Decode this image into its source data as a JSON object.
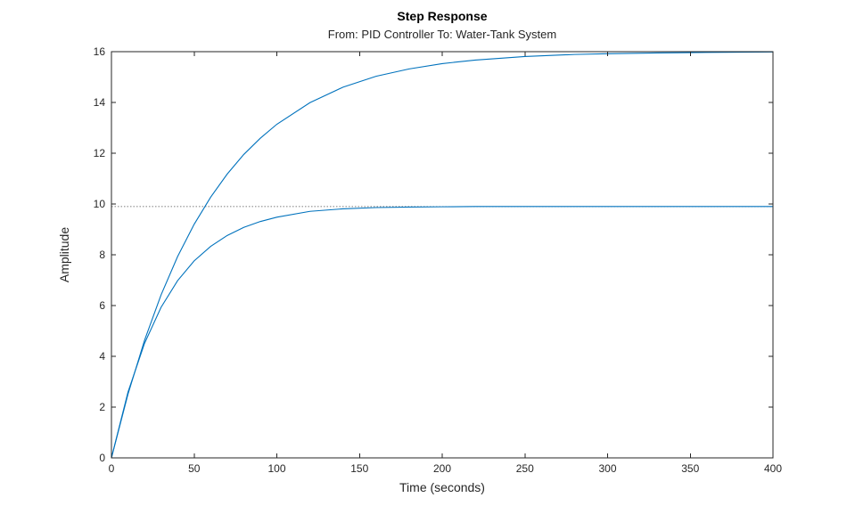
{
  "chart_data": {
    "type": "line",
    "title": "Step Response",
    "subtitle": "From: PID Controller  To: Water-Tank System",
    "xlabel": "Time (seconds)",
    "ylabel": "Amplitude",
    "xlim": [
      0,
      400
    ],
    "ylim": [
      0,
      16
    ],
    "xticks": [
      0,
      50,
      100,
      150,
      200,
      250,
      300,
      350,
      400
    ],
    "yticks": [
      0,
      2,
      4,
      6,
      8,
      10,
      12,
      14,
      16
    ],
    "xtick_labels": [
      "0",
      "50",
      "100",
      "150",
      "200",
      "250",
      "300",
      "350",
      "400"
    ],
    "ytick_labels": [
      "0",
      "2",
      "4",
      "6",
      "8",
      "10",
      "12",
      "14",
      "16"
    ],
    "grid": false,
    "line_color": "#0072BD",
    "reference_lines": [
      16,
      9.9
    ],
    "series": [
      {
        "x": [
          0,
          10,
          20,
          30,
          40,
          50,
          60,
          70,
          80,
          90,
          100,
          120,
          140,
          160,
          180,
          200,
          220,
          250,
          280,
          300,
          330,
          360,
          400
        ],
        "values": [
          0,
          2.51,
          4.63,
          6.42,
          7.93,
          9.2,
          10.27,
          11.18,
          11.95,
          12.59,
          13.14,
          13.99,
          14.6,
          15.03,
          15.32,
          15.53,
          15.67,
          15.81,
          15.89,
          15.92,
          15.95,
          15.97,
          15.99
        ]
      },
      {
        "x": [
          0,
          10,
          20,
          30,
          40,
          50,
          60,
          70,
          80,
          90,
          100,
          120,
          140,
          160,
          180,
          200,
          220,
          250,
          280,
          300,
          330,
          360,
          400
        ],
        "values": [
          0,
          2.59,
          4.51,
          5.93,
          6.98,
          7.76,
          8.33,
          8.76,
          9.08,
          9.31,
          9.48,
          9.71,
          9.81,
          9.86,
          9.88,
          9.89,
          9.9,
          9.9,
          9.9,
          9.9,
          9.9,
          9.9,
          9.9
        ]
      }
    ]
  }
}
